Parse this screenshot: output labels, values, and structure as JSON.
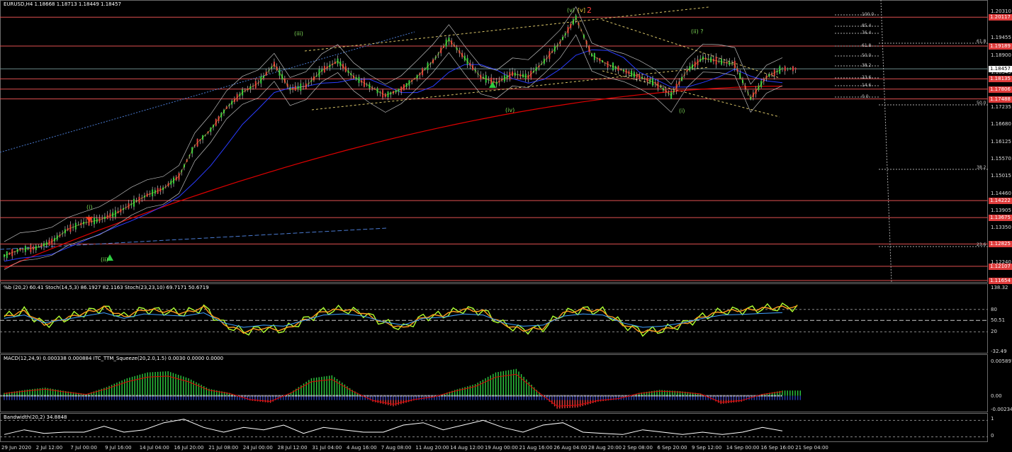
{
  "main": {
    "header": "EURUSD,H4  1.18668 1.18713 1.18449 1.18457",
    "price_axis": [
      "1.20310",
      "1.19455",
      "1.18900",
      "1.18345",
      "1.17235",
      "1.16680",
      "1.16125",
      "1.15570",
      "1.15015",
      "1.14460",
      "1.13905",
      "1.13350",
      "1.12795",
      "1.12240"
    ],
    "levels": [
      "1.20117",
      "1.19189",
      "1.18457",
      "1.18135",
      "1.17806",
      "1.17488",
      "1.14222",
      "1.13675",
      "1.12825",
      "1.12107",
      "1.11654"
    ],
    "fib": [
      "100.0",
      "85.4",
      "76.4",
      "61.8",
      "50.0",
      "38.2",
      "23.6",
      "14.6",
      "0.0"
    ],
    "fib_right": [
      "61.8",
      "50.0",
      "38.2",
      "23.6"
    ],
    "waves": [
      "(i)",
      "(ii)",
      "(iii)",
      "(iv)",
      "(v)",
      "[v]",
      "2",
      "(i)",
      "(ii) ?"
    ]
  },
  "stoch": {
    "header": "%b (20,2) 60.41  Stoch(14,5,3) 86.1927 82.1163  Stoch(23,23,10) 69.7171 50.6719",
    "axis": [
      "138.32",
      "80",
      "50.51",
      "20",
      "-32.49"
    ]
  },
  "macd": {
    "header": "MACD(12,24,9) 0.000338 0.000884  ITC_TTM_Squeeze(20,2.0,1.5) 0.0030 0.0000 0.0000",
    "axis": [
      "0.005897",
      "0.00",
      "-0.002341"
    ]
  },
  "bw": {
    "header": "Bandwidth(20,2) 34.8848",
    "axis": [
      "1",
      "0"
    ]
  },
  "time_axis": [
    "29 Jun 2020",
    "2 Jul 12:00",
    "7 Jul 00:00",
    "9 Jul 16:00",
    "14 Jul 04:00",
    "16 Jul 20:00",
    "21 Jul 08:00",
    "24 Jul 00:00",
    "28 Jul 12:00",
    "31 Jul 04:00",
    "4 Aug 16:00",
    "7 Aug 08:00",
    "11 Aug 20:00",
    "14 Aug 12:00",
    "19 Aug 00:00",
    "21 Aug 16:00",
    "26 Aug 04:00",
    "28 Aug 20:00",
    "2 Sep 08:00",
    "6 Sep 20:00",
    "9 Sep 12:00",
    "14 Sep 00:00",
    "16 Sep 16:00",
    "21 Sep 04:00"
  ],
  "colors": {
    "up": "#2ecc40",
    "down": "#e03c3c",
    "ma_red": "#e00000",
    "ma_blue": "#2a3cff",
    "level": "#e05050",
    "stoch_green": "#adff2f",
    "stoch_orange": "#ff9a1f",
    "stoch_blue": "#3fa0ff"
  },
  "chart_data": [
    {
      "type": "line",
      "title": "EURUSD,H4",
      "series": [
        {
          "name": "EURUSD",
          "values": [
            1.1245,
            1.1265,
            1.127,
            1.129,
            1.133,
            1.135,
            1.136,
            1.138,
            1.141,
            1.144,
            1.146,
            1.15,
            1.16,
            1.165,
            1.172,
            1.177,
            1.18,
            1.186,
            1.178,
            1.179,
            1.184,
            1.187,
            1.182,
            1.179,
            1.176,
            1.178,
            1.182,
            1.187,
            1.194,
            1.188,
            1.182,
            1.18,
            1.183,
            1.182,
            1.187,
            1.193,
            1.201,
            1.189,
            1.186,
            1.184,
            1.182,
            1.18,
            1.176,
            1.184,
            1.188,
            1.187,
            1.186,
            1.175,
            1.182,
            1.1846
          ]
        }
      ],
      "ylim": [
        1.1165,
        1.2035
      ]
    },
    {
      "type": "line",
      "series": [
        {
          "name": "Stoch(14,5,3)",
          "values": [
            60,
            75,
            40,
            55,
            70,
            85,
            60,
            80,
            75,
            70,
            85,
            40,
            20,
            30,
            25,
            50,
            75,
            80,
            70,
            45,
            30,
            60,
            65,
            80,
            75,
            40,
            25,
            30,
            70,
            80,
            75,
            40,
            20,
            25,
            40,
            60,
            75,
            78,
            82,
            86
          ]
        }
      ],
      "ylim": [
        -32.49,
        138.32
      ]
    },
    {
      "type": "bar",
      "series": [
        {
          "name": "MACD",
          "values": [
            0.0005,
            0.001,
            0.0014,
            0.0008,
            0.0003,
            0.0015,
            0.003,
            0.004,
            0.0042,
            0.003,
            0.0012,
            0.0005,
            -0.0008,
            -0.0012,
            0.0006,
            0.003,
            0.0035,
            0.001,
            -0.001,
            -0.0018,
            -0.0008,
            -0.0002,
            0.001,
            0.002,
            0.004,
            0.0046,
            0.001,
            -0.0022,
            -0.002,
            -0.001,
            -0.0006,
            0.0005,
            0.001,
            0.0008,
            0.0004,
            -0.0014,
            -0.001,
            0.0003,
            0.0009
          ]
        }
      ],
      "ylim": [
        -0.002341,
        0.005897
      ]
    },
    {
      "type": "line",
      "series": [
        {
          "name": "Bandwidth(20,2)",
          "values": [
            20,
            40,
            25,
            30,
            30,
            55,
            30,
            40,
            70,
            85,
            50,
            30,
            50,
            40,
            60,
            25,
            50,
            40,
            30,
            30,
            60,
            70,
            40,
            60,
            80,
            50,
            30,
            60,
            70,
            30,
            25,
            20,
            40,
            30,
            20,
            30,
            20,
            30,
            50,
            35
          ]
        }
      ]
    }
  ]
}
